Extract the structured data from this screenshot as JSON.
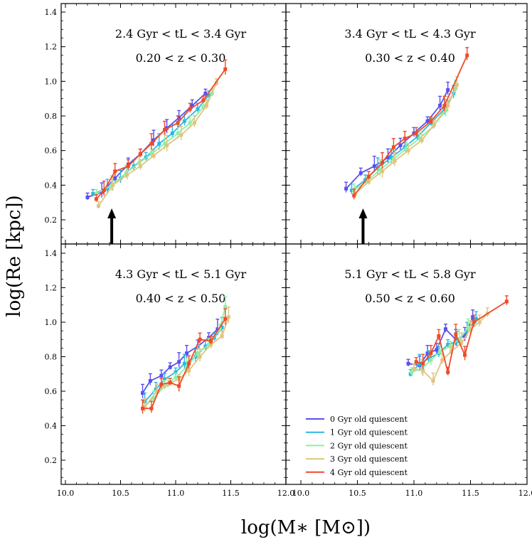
{
  "chart_data": {
    "type": "line",
    "xlabel": "log(M∗ [M⊙])",
    "ylabel": "log(Re [kpc])",
    "xlim": [
      10.0,
      12.0
    ],
    "ylim": [
      0.1,
      1.45
    ],
    "x_ticks": [
      "10.0",
      "10.5",
      "11.0",
      "11.5",
      "12.0"
    ],
    "y_ticks": [
      "0.2",
      "0.4",
      "0.6",
      "0.8",
      "1.0",
      "1.2",
      "1.4"
    ],
    "series_styles": [
      {
        "name": "0 Gyr old quiescent",
        "color": "#5b4ff0"
      },
      {
        "name": "1 Gyr old quiescent",
        "color": "#2bb7df"
      },
      {
        "name": "2 Gyr old quiescent",
        "color": "#8df0a6"
      },
      {
        "name": "3 Gyr old quiescent",
        "color": "#e0c47e"
      },
      {
        "name": "4 Gyr old quiescent",
        "color": "#f04a28"
      }
    ],
    "panels": [
      {
        "label_tl": "2.4 Gyr < tL < 3.4 Gyr",
        "label_z": "0.20 < z < 0.30",
        "arrow_x": 10.42,
        "series": [
          {
            "name": "0 Gyr old quiescent",
            "x": [
              10.2,
              10.33,
              10.45,
              10.57,
              10.68,
              10.8,
              10.92,
              11.03,
              11.15,
              11.27
            ],
            "y": [
              0.33,
              0.36,
              0.44,
              0.52,
              0.58,
              0.66,
              0.73,
              0.79,
              0.86,
              0.93
            ]
          },
          {
            "name": "1 Gyr old quiescent",
            "x": [
              10.25,
              10.38,
              10.5,
              10.62,
              10.73,
              10.85,
              10.97,
              11.08,
              11.2,
              11.3
            ],
            "y": [
              0.35,
              0.38,
              0.44,
              0.51,
              0.56,
              0.64,
              0.7,
              0.77,
              0.84,
              0.92
            ]
          },
          {
            "name": "2 Gyr old quiescent",
            "x": [
              10.28,
              10.42,
              10.55,
              10.67,
              10.78,
              10.9,
              11.02,
              11.13,
              11.25,
              11.33
            ],
            "y": [
              0.35,
              0.4,
              0.47,
              0.53,
              0.58,
              0.64,
              0.7,
              0.76,
              0.85,
              0.93
            ]
          },
          {
            "name": "3 Gyr old quiescent",
            "x": [
              10.3,
              10.43,
              10.56,
              10.68,
              10.8,
              10.92,
              11.05,
              11.17,
              11.28,
              11.37
            ],
            "y": [
              0.28,
              0.4,
              0.46,
              0.51,
              0.57,
              0.63,
              0.69,
              0.76,
              0.86,
              0.99
            ]
          },
          {
            "name": "4 Gyr old quiescent",
            "x": [
              10.28,
              10.35,
              10.45,
              10.57,
              10.68,
              10.78,
              10.9,
              11.02,
              11.13,
              11.25,
              11.45
            ],
            "y": [
              0.32,
              0.37,
              0.48,
              0.51,
              0.58,
              0.64,
              0.72,
              0.76,
              0.84,
              0.89,
              1.07
            ]
          }
        ]
      },
      {
        "label_tl": "3.4 Gyr < tL < 4.3 Gyr",
        "label_z": "0.30 < z < 0.40",
        "arrow_x": 10.55,
        "series": [
          {
            "name": "0 Gyr old quiescent",
            "x": [
              10.4,
              10.53,
              10.65,
              10.77,
              10.88,
              11.0,
              11.12,
              11.23,
              11.3
            ],
            "y": [
              0.38,
              0.47,
              0.51,
              0.56,
              0.63,
              0.7,
              0.77,
              0.86,
              0.95
            ]
          },
          {
            "name": "1 Gyr old quiescent",
            "x": [
              10.45,
              10.57,
              10.68,
              10.8,
              10.92,
              11.03,
              11.15,
              11.27,
              11.35
            ],
            "y": [
              0.37,
              0.43,
              0.5,
              0.56,
              0.62,
              0.68,
              0.76,
              0.84,
              0.93
            ]
          },
          {
            "name": "2 Gyr old quiescent",
            "x": [
              10.47,
              10.58,
              10.7,
              10.82,
              10.93,
              11.05,
              11.17,
              11.28,
              11.37
            ],
            "y": [
              0.37,
              0.42,
              0.49,
              0.55,
              0.61,
              0.67,
              0.74,
              0.83,
              0.96
            ]
          },
          {
            "name": "3 Gyr old quiescent",
            "x": [
              10.48,
              10.6,
              10.72,
              10.83,
              10.95,
              11.07,
              11.18,
              11.3,
              11.38
            ],
            "y": [
              0.35,
              0.42,
              0.48,
              0.54,
              0.6,
              0.66,
              0.75,
              0.86,
              0.98
            ]
          },
          {
            "name": "4 Gyr old quiescent",
            "x": [
              10.47,
              10.6,
              10.72,
              10.82,
              10.92,
              11.02,
              11.15,
              11.27,
              11.47
            ],
            "y": [
              0.34,
              0.45,
              0.53,
              0.62,
              0.67,
              0.7,
              0.77,
              0.86,
              1.15
            ]
          }
        ]
      },
      {
        "label_tl": "4.3 Gyr < tL < 5.1 Gyr",
        "label_z": "0.40 < z < 0.50",
        "series": [
          {
            "name": "0 Gyr old quiescent",
            "x": [
              10.7,
              10.77,
              10.87,
              10.95,
              11.03,
              11.1,
              11.2,
              11.3,
              11.38
            ],
            "y": [
              0.59,
              0.66,
              0.69,
              0.74,
              0.77,
              0.82,
              0.86,
              0.91,
              0.96
            ]
          },
          {
            "name": "1 Gyr old quiescent",
            "x": [
              10.72,
              10.82,
              10.9,
              11.0,
              11.08,
              11.18,
              11.27,
              11.35,
              11.42
            ],
            "y": [
              0.54,
              0.61,
              0.67,
              0.71,
              0.76,
              0.8,
              0.86,
              0.91,
              0.97
            ]
          },
          {
            "name": "2 Gyr old quiescent",
            "x": [
              10.7,
              10.8,
              10.9,
              11.0,
              11.1,
              11.2,
              11.3,
              11.4,
              11.45
            ],
            "y": [
              0.5,
              0.56,
              0.63,
              0.68,
              0.74,
              0.82,
              0.87,
              0.96,
              1.09
            ]
          },
          {
            "name": "3 Gyr old quiescent",
            "x": [
              10.72,
              10.83,
              10.93,
              11.03,
              11.12,
              11.22,
              11.32,
              11.42,
              11.48
            ],
            "y": [
              0.51,
              0.6,
              0.64,
              0.67,
              0.72,
              0.8,
              0.87,
              0.92,
              1.03
            ]
          },
          {
            "name": "4 Gyr old quiescent",
            "x": [
              10.7,
              10.78,
              10.87,
              10.95,
              11.03,
              11.12,
              11.22,
              11.32,
              11.45
            ],
            "y": [
              0.5,
              0.5,
              0.64,
              0.65,
              0.63,
              0.76,
              0.9,
              0.89,
              1.02
            ]
          }
        ]
      },
      {
        "label_tl": "5.1 Gyr < tL < 5.8 Gyr",
        "label_z": "0.50 < z < 0.60",
        "series": [
          {
            "name": "0 Gyr old quiescent",
            "x": [
              10.95,
              11.05,
              11.12,
              11.2,
              11.28,
              11.37,
              11.45,
              11.52
            ],
            "y": [
              0.76,
              0.75,
              0.82,
              0.84,
              0.96,
              0.9,
              0.92,
              1.03
            ]
          },
          {
            "name": "1 Gyr old quiescent",
            "x": [
              10.97,
              11.05,
              11.13,
              11.22,
              11.3,
              11.38,
              11.47,
              11.55
            ],
            "y": [
              0.7,
              0.76,
              0.79,
              0.82,
              0.87,
              0.89,
              0.95,
              1.02
            ]
          },
          {
            "name": "2 Gyr old quiescent",
            "x": [
              10.98,
              11.07,
              11.15,
              11.23,
              11.32,
              11.4,
              11.48
            ],
            "y": [
              0.71,
              0.73,
              0.78,
              0.83,
              0.86,
              0.9,
              0.97
            ]
          },
          {
            "name": "3 Gyr old quiescent",
            "x": [
              11.0,
              11.08,
              11.17,
              11.25,
              11.33,
              11.42,
              11.5,
              11.58,
              11.65
            ],
            "y": [
              0.73,
              0.72,
              0.66,
              0.78,
              0.83,
              0.88,
              0.96,
              1.0,
              1.05
            ]
          },
          {
            "name": "4 Gyr old quiescent",
            "x": [
              11.02,
              11.08,
              11.15,
              11.22,
              11.3,
              11.37,
              11.45,
              11.53,
              11.82
            ],
            "y": [
              0.77,
              0.76,
              0.82,
              0.92,
              0.71,
              0.93,
              0.81,
              1.0,
              1.12
            ]
          }
        ]
      }
    ],
    "legend": [
      "0 Gyr old quiescent",
      "1 Gyr old quiescent",
      "2 Gyr old quiescent",
      "3 Gyr old quiescent",
      "4 Gyr old quiescent"
    ]
  }
}
